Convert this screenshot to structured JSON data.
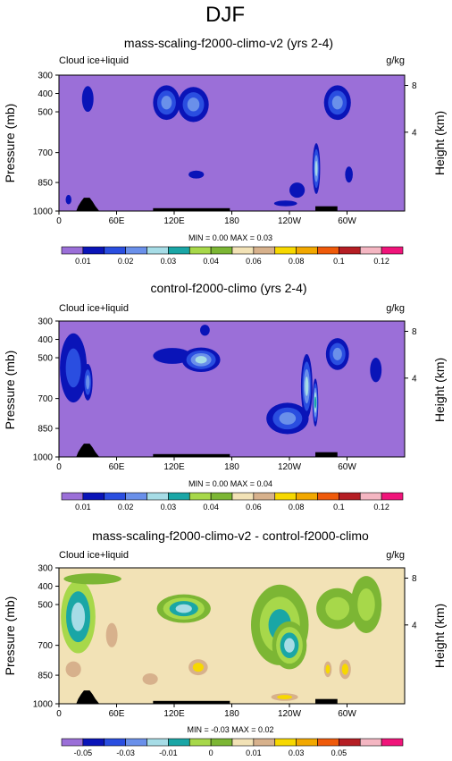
{
  "figure": {
    "title": "DJF"
  },
  "colors": {
    "level_fills": [
      "#9b6fd8",
      "#0a14b8",
      "#2a4ee0",
      "#6a90ea",
      "#a6dce6",
      "#1aa6a6",
      "#a7d84a",
      "#7cb634",
      "#f2e2b6",
      "#d7b18c",
      "#f7d800",
      "#f2a800",
      "#ef5a0a",
      "#b51e24",
      "#f4b6c2",
      "#f0147a"
    ],
    "land": "#000000"
  },
  "chart_data": [
    {
      "type": "heatmap",
      "title": "mass-scaling-f2000-climo-v2 (yrs 2-4)",
      "left_label": "Cloud ice+liquid",
      "right_label": "g/kg",
      "ylabel": "Pressure (mb)",
      "ylabel_right": "Height (km)",
      "x_ticks": [
        "0",
        "60E",
        "120E",
        "180",
        "120W",
        "60W"
      ],
      "y_ticks": [
        "300",
        "400",
        "500",
        "700",
        "850",
        "1000"
      ],
      "y_right_ticks": [
        "8",
        "4"
      ],
      "stats": "MIN =   0.00  MAX =   0.03",
      "colorbar": {
        "labels": [
          "0.01",
          "0.02",
          "0.03",
          "0.04",
          "0.06",
          "0.08",
          "0.1",
          "0.12"
        ]
      },
      "background_level": 0,
      "blobs": [
        {
          "lon": 30,
          "p": 430,
          "dlon": 6,
          "dp": 70,
          "levels": [
            1
          ]
        },
        {
          "lon": 112,
          "p": 450,
          "dlon": 14,
          "dp": 90,
          "levels": [
            1,
            2,
            3
          ]
        },
        {
          "lon": 140,
          "p": 460,
          "dlon": 16,
          "dp": 90,
          "levels": [
            1,
            2,
            3
          ]
        },
        {
          "lon": 143,
          "p": 810,
          "dlon": 8,
          "dp": 20,
          "levels": [
            1
          ]
        },
        {
          "lon": 290,
          "p": 450,
          "dlon": 14,
          "dp": 90,
          "levels": [
            1,
            2,
            3
          ]
        },
        {
          "lon": 268,
          "p": 780,
          "dlon": 4,
          "dp": 130,
          "levels": [
            1,
            2,
            3,
            4
          ]
        },
        {
          "lon": 302,
          "p": 810,
          "dlon": 4,
          "dp": 40,
          "levels": [
            1
          ]
        },
        {
          "lon": 248,
          "p": 890,
          "dlon": 8,
          "dp": 40,
          "levels": [
            1
          ]
        },
        {
          "lon": 236,
          "p": 960,
          "dlon": 12,
          "dp": 15,
          "levels": [
            1
          ]
        },
        {
          "lon": 10,
          "p": 940,
          "dlon": 3,
          "dp": 25,
          "levels": [
            1
          ]
        }
      ]
    },
    {
      "type": "heatmap",
      "title": "control-f2000-climo (yrs 2-4)",
      "left_label": "Cloud ice+liquid",
      "right_label": "g/kg",
      "ylabel": "Pressure (mb)",
      "ylabel_right": "Height (km)",
      "x_ticks": [
        "0",
        "60E",
        "120E",
        "180",
        "120W",
        "60W"
      ],
      "y_ticks": [
        "300",
        "400",
        "500",
        "700",
        "850",
        "1000"
      ],
      "y_right_ticks": [
        "8",
        "4"
      ],
      "stats": "MIN =   0.00  MAX =   0.04",
      "colorbar": {
        "labels": [
          "0.01",
          "0.02",
          "0.03",
          "0.04",
          "0.06",
          "0.08",
          "0.1",
          "0.12"
        ]
      },
      "background_level": 0,
      "blobs": [
        {
          "lon": 15,
          "p": 550,
          "dlon": 14,
          "dp": 170,
          "levels": [
            1,
            2
          ]
        },
        {
          "lon": 30,
          "p": 620,
          "dlon": 5,
          "dp": 90,
          "levels": [
            1,
            2,
            3
          ]
        },
        {
          "lon": 118,
          "p": 490,
          "dlon": 20,
          "dp": 40,
          "levels": [
            1
          ]
        },
        {
          "lon": 148,
          "p": 510,
          "dlon": 20,
          "dp": 60,
          "levels": [
            1,
            2,
            3,
            4
          ]
        },
        {
          "lon": 152,
          "p": 350,
          "dlon": 5,
          "dp": 30,
          "levels": [
            1
          ]
        },
        {
          "lon": 238,
          "p": 800,
          "dlon": 22,
          "dp": 80,
          "levels": [
            1,
            2,
            3
          ]
        },
        {
          "lon": 258,
          "p": 640,
          "dlon": 6,
          "dp": 160,
          "levels": [
            1,
            2,
            3,
            4
          ]
        },
        {
          "lon": 267,
          "p": 720,
          "dlon": 3,
          "dp": 120,
          "levels": [
            1,
            2,
            3,
            4,
            5
          ]
        },
        {
          "lon": 290,
          "p": 480,
          "dlon": 12,
          "dp": 80,
          "levels": [
            1,
            2,
            3
          ]
        },
        {
          "lon": 330,
          "p": 560,
          "dlon": 6,
          "dp": 60,
          "levels": [
            1
          ]
        }
      ]
    },
    {
      "type": "heatmap",
      "title": "mass-scaling-f2000-climo-v2 - control-f2000-climo",
      "left_label": "Cloud ice+liquid",
      "right_label": "g/kg",
      "ylabel": "Pressure (mb)",
      "ylabel_right": "Height (km)",
      "x_ticks": [
        "0",
        "60E",
        "120E",
        "180",
        "120W",
        "60W"
      ],
      "y_ticks": [
        "300",
        "400",
        "500",
        "700",
        "850",
        "1000"
      ],
      "y_right_ticks": [
        "8",
        "4"
      ],
      "stats": "MIN =  -0.03  MAX =   0.02",
      "colorbar": {
        "labels": [
          "-0.05",
          "-0.03",
          "-0.01",
          "0",
          "0.01",
          "0.03",
          "0.05"
        ]
      },
      "background_level": 8,
      "blobs": [
        {
          "lon": 20,
          "p": 560,
          "dlon": 18,
          "dp": 180,
          "levels": [
            6,
            5,
            4
          ]
        },
        {
          "lon": 35,
          "p": 360,
          "dlon": 30,
          "dp": 30,
          "levels": [
            7
          ]
        },
        {
          "lon": 130,
          "p": 520,
          "dlon": 28,
          "dp": 70,
          "levels": [
            7,
            6,
            5,
            4
          ]
        },
        {
          "lon": 230,
          "p": 600,
          "dlon": 30,
          "dp": 200,
          "levels": [
            7,
            6,
            5
          ]
        },
        {
          "lon": 240,
          "p": 700,
          "dlon": 18,
          "dp": 120,
          "levels": [
            7,
            6,
            5,
            4
          ]
        },
        {
          "lon": 290,
          "p": 520,
          "dlon": 22,
          "dp": 100,
          "levels": [
            7,
            6
          ]
        },
        {
          "lon": 320,
          "p": 500,
          "dlon": 16,
          "dp": 140,
          "levels": [
            7,
            6
          ]
        },
        {
          "lon": 145,
          "p": 810,
          "dlon": 10,
          "dp": 40,
          "levels": [
            9,
            10
          ]
        },
        {
          "lon": 235,
          "p": 965,
          "dlon": 14,
          "dp": 20,
          "levels": [
            9,
            10
          ]
        },
        {
          "lon": 280,
          "p": 820,
          "dlon": 4,
          "dp": 40,
          "levels": [
            9,
            10
          ]
        },
        {
          "lon": 298,
          "p": 820,
          "dlon": 6,
          "dp": 50,
          "levels": [
            9,
            10
          ]
        },
        {
          "lon": 15,
          "p": 820,
          "dlon": 8,
          "dp": 40,
          "levels": [
            9
          ]
        },
        {
          "lon": 95,
          "p": 870,
          "dlon": 8,
          "dp": 30,
          "levels": [
            9
          ]
        },
        {
          "lon": 55,
          "p": 650,
          "dlon": 6,
          "dp": 60,
          "levels": [
            9
          ]
        }
      ]
    }
  ]
}
